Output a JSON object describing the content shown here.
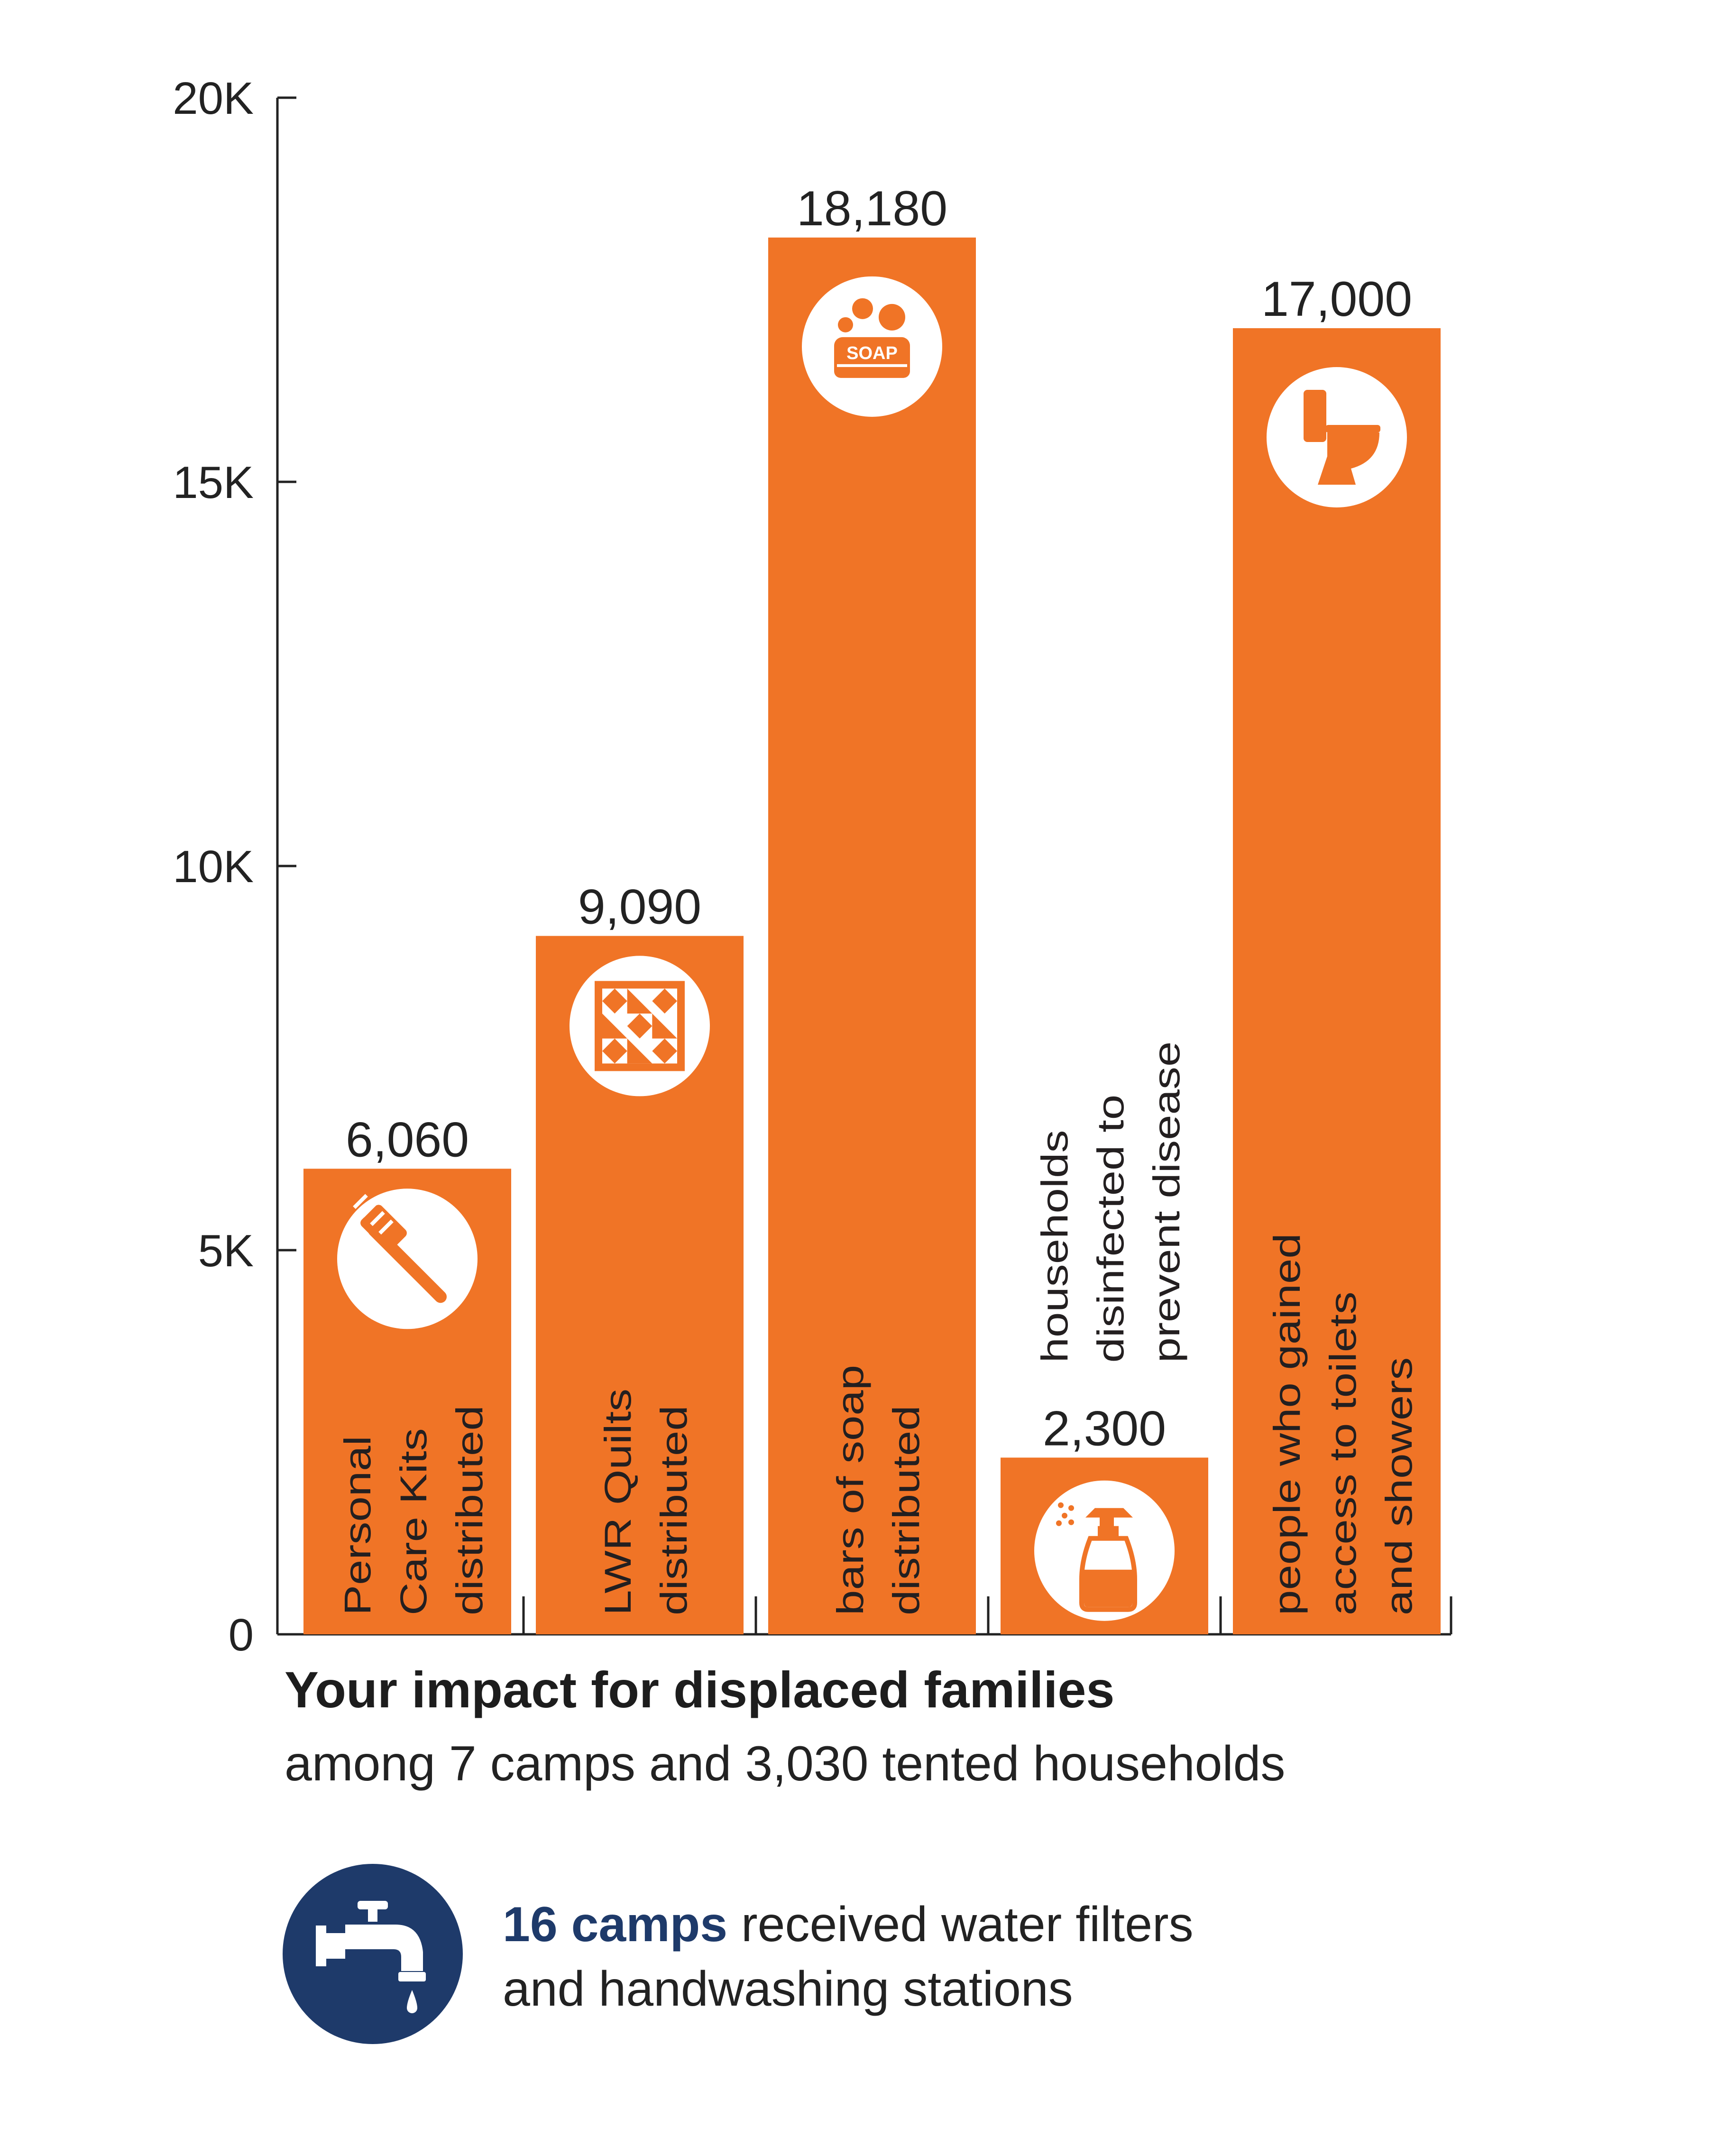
{
  "colors": {
    "bar": "#f07426",
    "axis": "#222222",
    "text": "#222222",
    "navy": "#1e3a6a",
    "icon_bg": "#ffffff"
  },
  "chart_data": {
    "type": "bar",
    "ylim": [
      0,
      20000
    ],
    "yticks": [
      {
        "value": 0,
        "label": "0"
      },
      {
        "value": 5000,
        "label": "5K"
      },
      {
        "value": 10000,
        "label": "10K"
      },
      {
        "value": 15000,
        "label": "15K"
      },
      {
        "value": 20000,
        "label": "20K"
      }
    ],
    "bars": [
      {
        "value": 6060,
        "value_label": "6,060",
        "label": [
          "Personal",
          "Care Kits",
          "distributed"
        ],
        "icon": "toothbrush-icon"
      },
      {
        "value": 9090,
        "value_label": "9,090",
        "label": [
          "LWR Quilts",
          "distributed"
        ],
        "icon": "quilt-icon"
      },
      {
        "value": 18180,
        "value_label": "18,180",
        "label": [
          "bars of soap",
          "distributed"
        ],
        "icon": "soap-icon"
      },
      {
        "value": 2300,
        "value_label": "2,300",
        "label": [
          "households",
          "disinfected to",
          "prevent disease"
        ],
        "icon": "spray-bottle-icon"
      },
      {
        "value": 17000,
        "value_label": "17,000",
        "label": [
          "people who gained",
          "access to toilets",
          "and showers"
        ],
        "icon": "toilet-icon"
      }
    ]
  },
  "footer": {
    "title": "Your impact for displaced families",
    "subtitle": "among 7 camps and 3,030 tented households",
    "water": {
      "highlight": "16 camps",
      "line1": " received water filters",
      "line2": "and handwashing stations",
      "icon": "water-tap-icon"
    }
  }
}
